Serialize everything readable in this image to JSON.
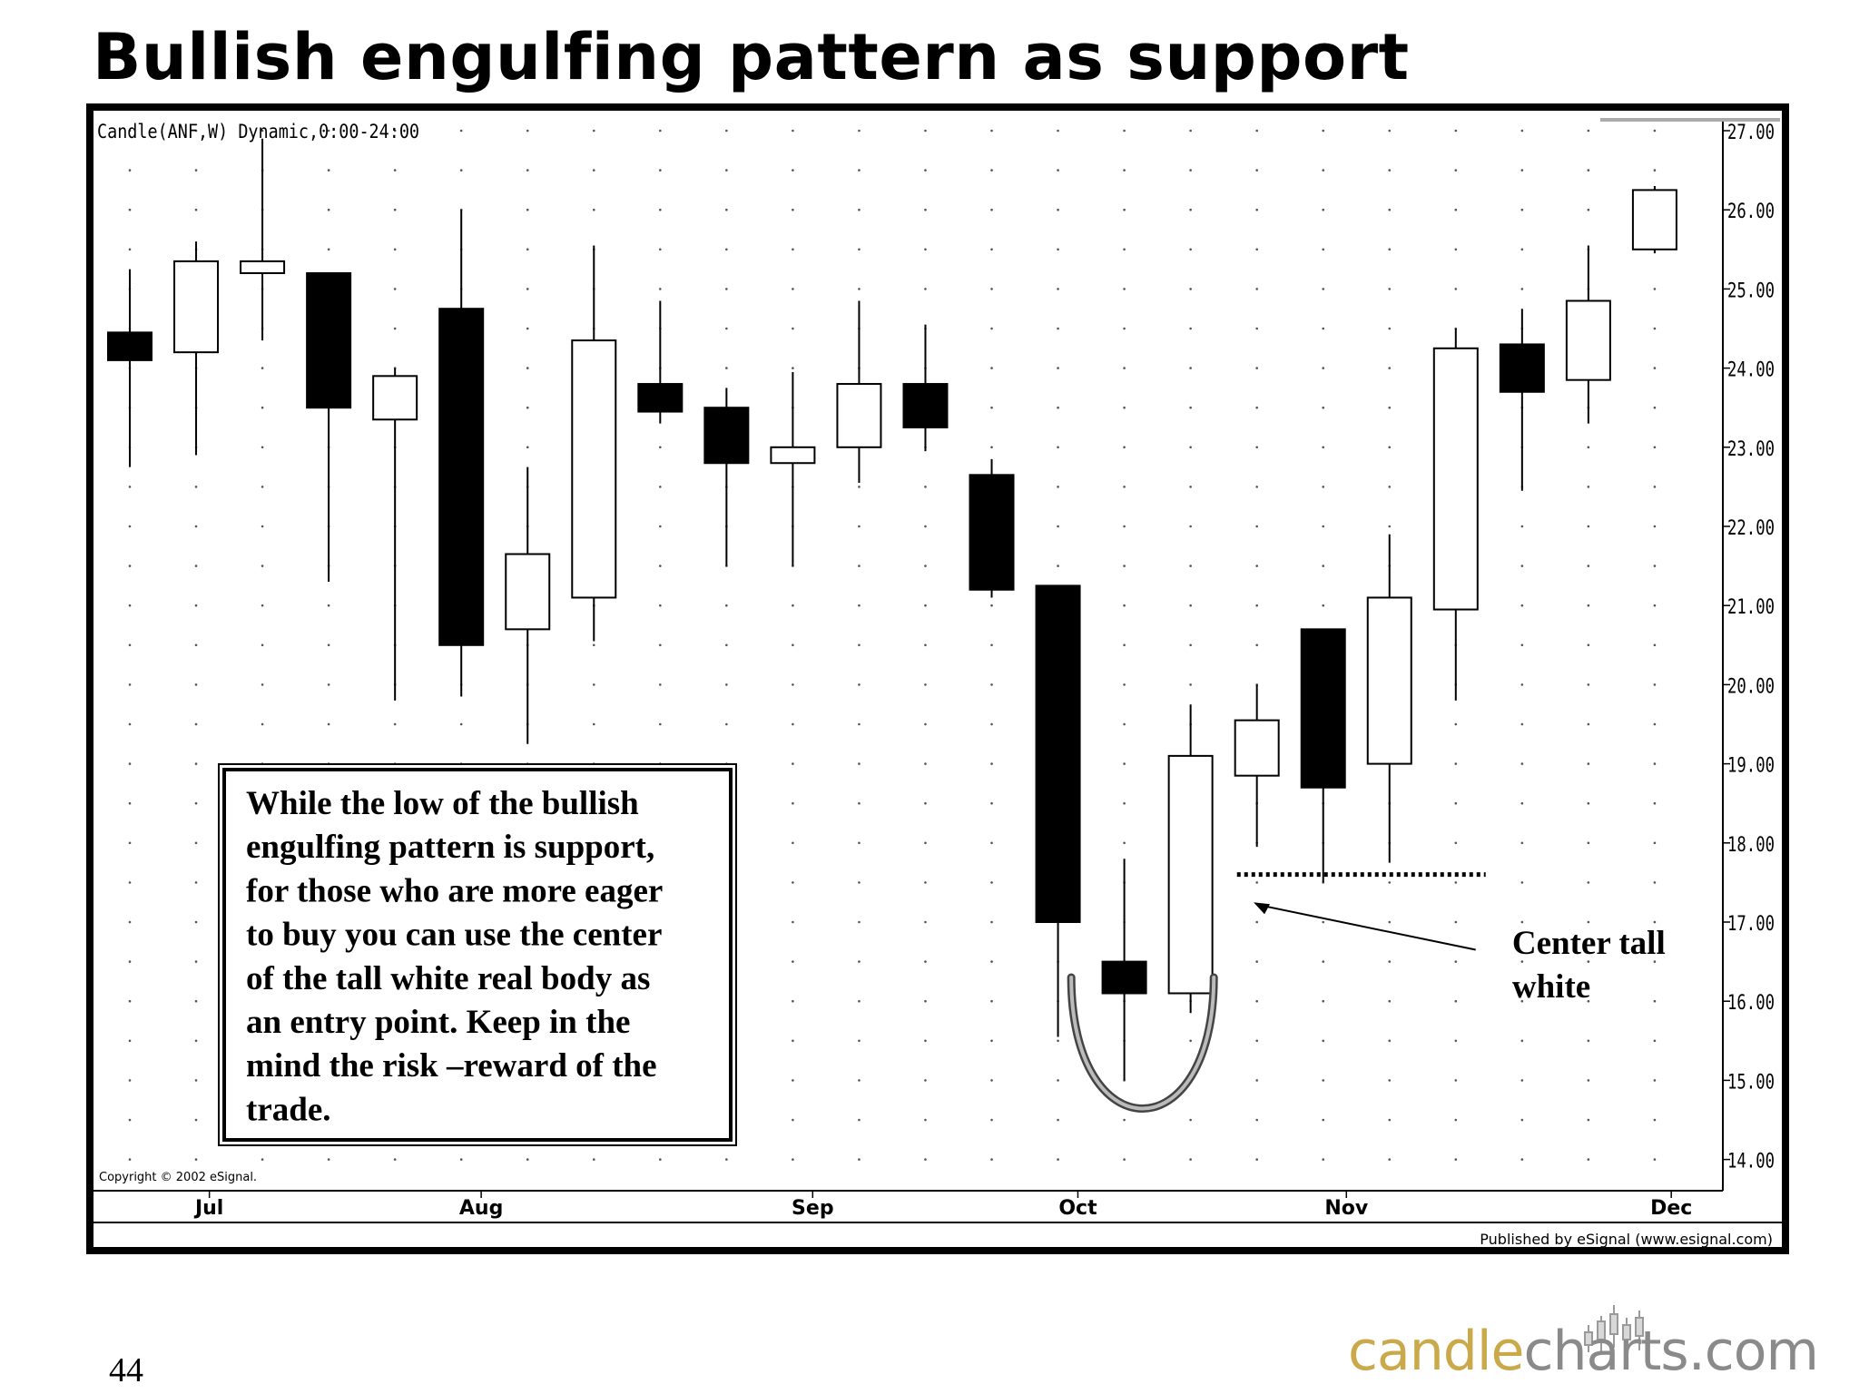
{
  "slide": {
    "title": "Bullish engulfing pattern as support",
    "page_number": "44",
    "logo": {
      "part1": "candle",
      "part2": "charts",
      "part3": ".com",
      "color_gold": "#c9a94a",
      "color_gray": "#8a8a8a"
    }
  },
  "chart_data": {
    "type": "candlestick",
    "header_label": "Candle(ANF,W) Dynamic,0:00-24:00",
    "copyright": "Copyright © 2002 eSignal.",
    "publisher": "Published by eSignal (www.esignal.com)",
    "ylim": [
      13.75,
      27.25
    ],
    "y_ticks": [
      "27.00",
      "26.00",
      "25.00",
      "24.00",
      "23.00",
      "22.00",
      "21.00",
      "20.00",
      "19.00",
      "18.00",
      "17.00",
      "16.00",
      "15.00",
      "14.00"
    ],
    "x_months": [
      {
        "label": "Jul",
        "candle_index": 1.2
      },
      {
        "label": "Aug",
        "candle_index": 5.3
      },
      {
        "label": "Sep",
        "candle_index": 10.3
      },
      {
        "label": "Oct",
        "candle_index": 14.3
      },
      {
        "label": "Nov",
        "candle_index": 18.35
      },
      {
        "label": "Dec",
        "candle_index": 23.25
      }
    ],
    "grid": "dotted",
    "candles": [
      {
        "open": 24.45,
        "high": 25.25,
        "low": 22.75,
        "close": 24.1
      },
      {
        "open": 24.2,
        "high": 25.6,
        "low": 22.9,
        "close": 25.35
      },
      {
        "open": 25.2,
        "high": 26.9,
        "low": 24.35,
        "close": 25.35
      },
      {
        "open": 25.2,
        "high": 25.2,
        "low": 21.3,
        "close": 23.5
      },
      {
        "open": 23.35,
        "high": 24.0,
        "low": 19.8,
        "close": 23.9
      },
      {
        "open": 24.75,
        "high": 26.0,
        "low": 19.85,
        "close": 20.5
      },
      {
        "open": 20.7,
        "high": 22.75,
        "low": 19.25,
        "close": 21.65
      },
      {
        "open": 21.1,
        "high": 25.55,
        "low": 20.55,
        "close": 24.35
      },
      {
        "open": 23.8,
        "high": 24.85,
        "low": 23.3,
        "close": 23.45
      },
      {
        "open": 23.5,
        "high": 23.75,
        "low": 21.5,
        "close": 22.8
      },
      {
        "open": 22.8,
        "high": 23.95,
        "low": 21.5,
        "close": 23.0
      },
      {
        "open": 23.0,
        "high": 24.85,
        "low": 22.55,
        "close": 23.8
      },
      {
        "open": 23.8,
        "high": 24.55,
        "low": 22.95,
        "close": 23.25
      },
      {
        "open": 22.65,
        "high": 22.85,
        "low": 21.1,
        "close": 21.2
      },
      {
        "open": 21.25,
        "high": 21.25,
        "low": 15.55,
        "close": 17.0
      },
      {
        "open": 16.5,
        "high": 17.8,
        "low": 15.0,
        "close": 16.1
      },
      {
        "open": 16.1,
        "high": 19.75,
        "low": 15.85,
        "close": 19.1
      },
      {
        "open": 18.85,
        "high": 20.0,
        "low": 17.95,
        "close": 19.55
      },
      {
        "open": 20.7,
        "high": 20.7,
        "low": 17.5,
        "close": 18.7
      },
      {
        "open": 19.0,
        "high": 21.9,
        "low": 17.75,
        "close": 21.1
      },
      {
        "open": 20.95,
        "high": 24.5,
        "low": 19.8,
        "close": 24.25
      },
      {
        "open": 24.3,
        "high": 24.75,
        "low": 22.45,
        "close": 23.7
      },
      {
        "open": 23.85,
        "high": 25.55,
        "low": 23.3,
        "close": 24.85
      },
      {
        "open": 25.5,
        "high": 26.3,
        "low": 25.45,
        "close": 26.25
      }
    ],
    "annotations": {
      "note_text": "While the low of the bullish engulfing pattern is support, for those who are more eager to buy you can use the center of the tall white real body as an entry point. Keep in the mind the risk –reward of the trade.",
      "note_lines": [
        "While the low of the bullish",
        "engulfing pattern is support,",
        "for those who are more eager",
        "to buy you can use the center",
        "of the tall white real body as",
        "an entry point. Keep in the",
        "mind the risk –reward of the",
        "trade."
      ],
      "center_label_lines": [
        "Center tall",
        "white"
      ],
      "center_level": 17.6
    }
  }
}
